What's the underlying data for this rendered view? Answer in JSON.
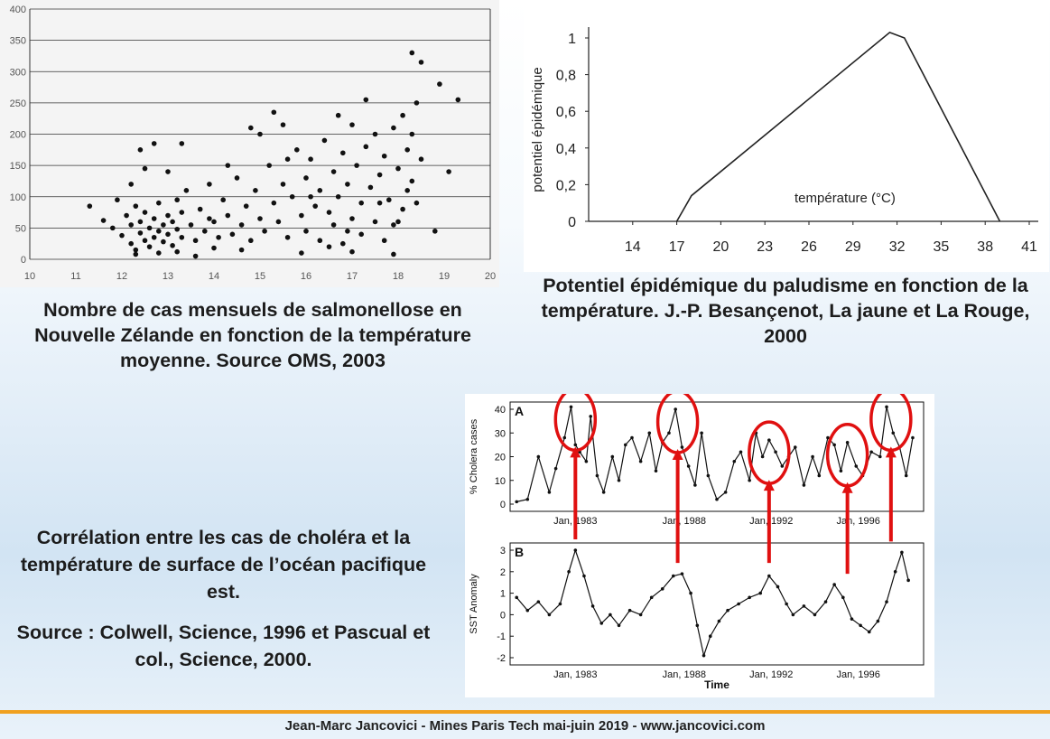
{
  "captions": {
    "salmonella": "Nombre de cas mensuels de salmonellose en Nouvelle Zélande en fonction de la température moyenne. Source OMS, 2003",
    "malaria": "Potentiel épidémique du paludisme en fonction de la température. J.-P. Besançenot, La jaune et La Rouge, 2000",
    "cholera_title": "Corrélation entre les cas de choléra et la température de surface de l’océan pacifique est.",
    "cholera_source": "Source : Colwell, Science, 1996 et Pascual et col., Science, 2000."
  },
  "footer": "Jean-Marc Jancovici - Mines Paris Tech mai-juin 2019 - www.jancovici.com",
  "colors": {
    "footer_line": "#f0a020",
    "highlight": "#e01010"
  },
  "chart_data": [
    {
      "type": "scatter",
      "title": "",
      "xlabel": "",
      "ylabel": "",
      "xlim": [
        10,
        20
      ],
      "ylim": [
        0,
        400
      ],
      "xticks": [
        "10",
        "11",
        "12",
        "13",
        "14",
        "15",
        "16",
        "17",
        "18",
        "19",
        "20"
      ],
      "yticks": [
        "0",
        "50",
        "100",
        "150",
        "200",
        "250",
        "300",
        "350",
        "400"
      ],
      "grid": "horizontal",
      "points": [
        [
          11.3,
          85
        ],
        [
          11.6,
          62
        ],
        [
          11.8,
          50
        ],
        [
          11.9,
          95
        ],
        [
          12.0,
          38
        ],
        [
          12.1,
          70
        ],
        [
          12.2,
          25
        ],
        [
          12.2,
          55
        ],
        [
          12.3,
          15
        ],
        [
          12.3,
          85
        ],
        [
          12.4,
          42
        ],
        [
          12.4,
          60
        ],
        [
          12.5,
          30
        ],
        [
          12.5,
          75
        ],
        [
          12.6,
          20
        ],
        [
          12.6,
          50
        ],
        [
          12.7,
          35
        ],
        [
          12.7,
          65
        ],
        [
          12.8,
          45
        ],
        [
          12.8,
          90
        ],
        [
          12.9,
          28
        ],
        [
          12.9,
          55
        ],
        [
          13.0,
          40
        ],
        [
          13.0,
          70
        ],
        [
          13.1,
          22
        ],
        [
          13.1,
          60
        ],
        [
          13.2,
          48
        ],
        [
          13.2,
          95
        ],
        [
          13.3,
          35
        ],
        [
          13.3,
          75
        ],
        [
          12.4,
          175
        ],
        [
          12.7,
          185
        ],
        [
          13.3,
          185
        ],
        [
          12.5,
          145
        ],
        [
          13.0,
          140
        ],
        [
          12.2,
          120
        ],
        [
          13.4,
          110
        ],
        [
          13.5,
          55
        ],
        [
          13.6,
          30
        ],
        [
          13.7,
          80
        ],
        [
          13.8,
          45
        ],
        [
          13.9,
          120
        ],
        [
          14.0,
          60
        ],
        [
          14.1,
          35
        ],
        [
          14.2,
          95
        ],
        [
          14.3,
          70
        ],
        [
          14.4,
          40
        ],
        [
          14.5,
          130
        ],
        [
          14.6,
          55
        ],
        [
          14.7,
          85
        ],
        [
          14.8,
          30
        ],
        [
          14.9,
          110
        ],
        [
          15.0,
          65
        ],
        [
          15.0,
          200
        ],
        [
          15.1,
          45
        ],
        [
          15.2,
          150
        ],
        [
          15.3,
          90
        ],
        [
          15.4,
          60
        ],
        [
          15.5,
          215
        ],
        [
          15.5,
          120
        ],
        [
          15.6,
          35
        ],
        [
          15.7,
          100
        ],
        [
          15.8,
          175
        ],
        [
          15.9,
          70
        ],
        [
          16.0,
          130
        ],
        [
          16.0,
          45
        ],
        [
          16.1,
          160
        ],
        [
          16.2,
          85
        ],
        [
          16.3,
          110
        ],
        [
          16.3,
          30
        ],
        [
          16.4,
          190
        ],
        [
          16.5,
          75
        ],
        [
          16.6,
          140
        ],
        [
          16.6,
          55
        ],
        [
          16.7,
          100
        ],
        [
          16.8,
          170
        ],
        [
          16.8,
          25
        ],
        [
          16.9,
          120
        ],
        [
          17.0,
          65
        ],
        [
          17.0,
          215
        ],
        [
          17.1,
          150
        ],
        [
          17.2,
          90
        ],
        [
          17.2,
          40
        ],
        [
          17.3,
          255
        ],
        [
          17.3,
          180
        ],
        [
          17.4,
          115
        ],
        [
          17.5,
          60
        ],
        [
          17.5,
          200
        ],
        [
          17.6,
          135
        ],
        [
          17.7,
          30
        ],
        [
          17.7,
          165
        ],
        [
          17.8,
          95
        ],
        [
          17.9,
          210
        ],
        [
          17.9,
          55
        ],
        [
          18.0,
          145
        ],
        [
          18.1,
          80
        ],
        [
          18.1,
          230
        ],
        [
          18.2,
          175
        ],
        [
          18.2,
          110
        ],
        [
          18.3,
          200
        ],
        [
          18.3,
          125
        ],
        [
          18.4,
          250
        ],
        [
          18.4,
          90
        ],
        [
          18.5,
          315
        ],
        [
          18.5,
          160
        ],
        [
          18.3,
          330
        ],
        [
          18.9,
          280
        ],
        [
          19.1,
          140
        ],
        [
          19.3,
          255
        ],
        [
          18.8,
          45
        ],
        [
          12.8,
          10
        ],
        [
          13.6,
          5
        ],
        [
          14.6,
          15
        ],
        [
          15.9,
          10
        ],
        [
          17.0,
          12
        ],
        [
          17.9,
          8
        ],
        [
          16.5,
          20
        ],
        [
          14.0,
          18
        ],
        [
          13.2,
          12
        ],
        [
          12.3,
          8
        ],
        [
          14.8,
          210
        ],
        [
          15.3,
          235
        ],
        [
          16.1,
          100
        ],
        [
          16.9,
          45
        ],
        [
          17.6,
          90
        ],
        [
          18.0,
          60
        ],
        [
          15.6,
          160
        ],
        [
          14.3,
          150
        ],
        [
          13.9,
          65
        ],
        [
          16.7,
          230
        ]
      ]
    },
    {
      "type": "line",
      "title": "",
      "xlabel": "température (°C)",
      "ylabel": "potentiel épidémique",
      "xlim": [
        11,
        41
      ],
      "ylim": [
        0,
        1
      ],
      "xticks": [
        "14",
        "17",
        "20",
        "23",
        "26",
        "29",
        "32",
        "35",
        "38",
        "41"
      ],
      "yticks": [
        "0",
        "0,2",
        "0,4",
        "0,6",
        "0,8",
        "1"
      ],
      "x": [
        17,
        18,
        31.5,
        32.5,
        39
      ],
      "y": [
        0,
        0.14,
        1.03,
        1.0,
        0
      ]
    },
    {
      "type": "line",
      "title": "A",
      "ylabel": "% Cholera cases",
      "xlim": [
        1980,
        1999
      ],
      "ylim": [
        0,
        40
      ],
      "xticks": [
        "Jan, 1983",
        "Jan, 1988",
        "Jan, 1992",
        "Jan, 1996"
      ],
      "yticks": [
        "0",
        "10",
        "20",
        "30",
        "40"
      ],
      "x": [
        1980.3,
        1980.8,
        1981.3,
        1981.8,
        1982.1,
        1982.5,
        1982.8,
        1983.0,
        1983.2,
        1983.5,
        1983.7,
        1984.0,
        1984.3,
        1984.7,
        1985.0,
        1985.3,
        1985.6,
        1986.0,
        1986.4,
        1986.7,
        1987.0,
        1987.3,
        1987.6,
        1987.9,
        1988.2,
        1988.5,
        1988.8,
        1989.1,
        1989.5,
        1989.9,
        1990.3,
        1990.6,
        1991.0,
        1991.3,
        1991.6,
        1991.9,
        1992.2,
        1992.5,
        1992.8,
        1993.1,
        1993.5,
        1993.9,
        1994.2,
        1994.6,
        1994.9,
        1995.2,
        1995.5,
        1995.9,
        1996.2,
        1996.6,
        1997.0,
        1997.3,
        1997.6,
        1997.9,
        1998.2,
        1998.5
      ],
      "y": [
        1,
        2,
        20,
        5,
        15,
        28,
        41,
        25,
        22,
        18,
        37,
        12,
        5,
        20,
        10,
        25,
        28,
        18,
        30,
        14,
        26,
        30,
        40,
        24,
        16,
        8,
        30,
        12,
        2,
        5,
        18,
        22,
        10,
        30,
        20,
        27,
        22,
        16,
        20,
        24,
        8,
        20,
        12,
        28,
        25,
        14,
        26,
        16,
        12,
        22,
        20,
        41,
        30,
        24,
        12,
        28
      ]
    },
    {
      "type": "line",
      "title": "B",
      "xlabel": "Time",
      "ylabel": "SST Anomaly",
      "xlim": [
        1980,
        1999
      ],
      "ylim": [
        -2,
        3
      ],
      "xticks": [
        "Jan, 1983",
        "Jan, 1988",
        "Jan, 1992",
        "Jan, 1996"
      ],
      "yticks": [
        "-2",
        "-1",
        "0",
        "1",
        "2",
        "3"
      ],
      "x": [
        1980.3,
        1980.8,
        1981.3,
        1981.8,
        1982.3,
        1982.7,
        1983.0,
        1983.4,
        1983.8,
        1984.2,
        1984.6,
        1985.0,
        1985.5,
        1986.0,
        1986.5,
        1987.0,
        1987.5,
        1987.9,
        1988.3,
        1988.6,
        1988.9,
        1989.2,
        1989.6,
        1990.0,
        1990.5,
        1991.0,
        1991.5,
        1991.9,
        1992.3,
        1992.7,
        1993.0,
        1993.5,
        1994.0,
        1994.5,
        1994.9,
        1995.3,
        1995.7,
        1996.1,
        1996.5,
        1996.9,
        1997.3,
        1997.7,
        1998.0,
        1998.3
      ],
      "y": [
        0.8,
        0.2,
        0.6,
        0.0,
        0.5,
        2.0,
        3.0,
        1.8,
        0.4,
        -0.4,
        0.0,
        -0.5,
        0.2,
        0.0,
        0.8,
        1.2,
        1.8,
        1.9,
        1.0,
        -0.5,
        -1.9,
        -1.0,
        -0.3,
        0.2,
        0.5,
        0.8,
        1.0,
        1.8,
        1.3,
        0.5,
        0.0,
        0.4,
        0.0,
        0.6,
        1.4,
        0.8,
        -0.2,
        -0.5,
        -0.8,
        -0.3,
        0.6,
        2.0,
        2.9,
        1.6
      ]
    }
  ]
}
